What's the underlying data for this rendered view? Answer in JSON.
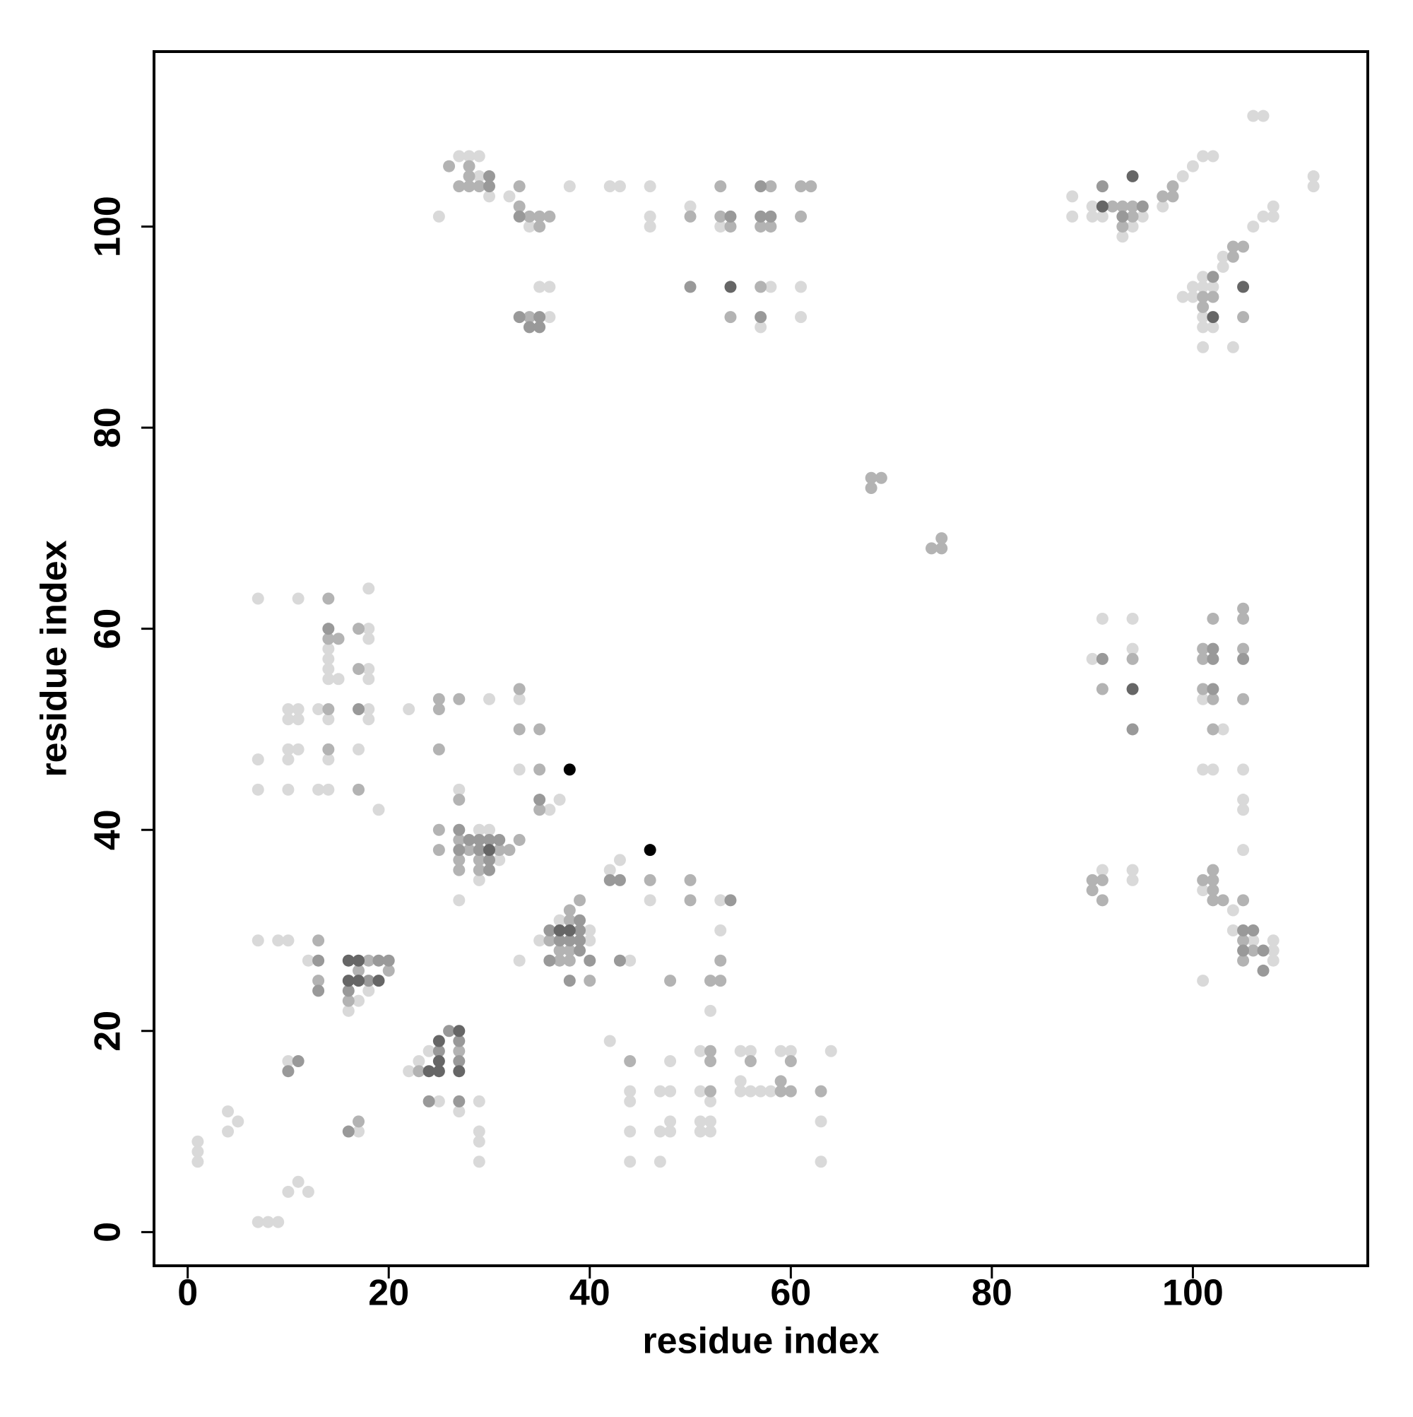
{
  "chart_data": {
    "type": "scatter",
    "x_label": "residue index",
    "y_label": "residue index",
    "xlim": [
      -3.35,
      117.4
    ],
    "ylim": [
      -3.35,
      117.4
    ],
    "xticks": [
      0,
      20,
      40,
      60,
      80,
      100
    ],
    "yticks": [
      0,
      20,
      40,
      60,
      80,
      100
    ],
    "series": [
      {
        "color": "#d9d9d9",
        "x": [
          1,
          1,
          1,
          4,
          4,
          5,
          7,
          8,
          9,
          10,
          11,
          12,
          7,
          9,
          10,
          12,
          10,
          17,
          17,
          16,
          18,
          22,
          23,
          24,
          25,
          27,
          29,
          29,
          29,
          29,
          37,
          40,
          40,
          35,
          33,
          44,
          42,
          42,
          43,
          46,
          53,
          53,
          52,
          44,
          44,
          44,
          44,
          47,
          48,
          48,
          48,
          48,
          47,
          47,
          51,
          51,
          52,
          51,
          52,
          51,
          52,
          55,
          56,
          55,
          55,
          56,
          57,
          58,
          59,
          60,
          63,
          63,
          64,
          29,
          30,
          31,
          29,
          27,
          27,
          30,
          22,
          33,
          33,
          36,
          37,
          7,
          11,
          18,
          18,
          18,
          14,
          14,
          14,
          14,
          15,
          18,
          18,
          10,
          11,
          13,
          18,
          10,
          11,
          14,
          18,
          10,
          11,
          17,
          10,
          14,
          7,
          7,
          10,
          13,
          14,
          19,
          27,
          28,
          29,
          29,
          30,
          25,
          32,
          34,
          38,
          42,
          43,
          46,
          46,
          46,
          50,
          53,
          35,
          36,
          36,
          58,
          61,
          57,
          61,
          88,
          88,
          90,
          91,
          90,
          93,
          94,
          95,
          97,
          99,
          100,
          101,
          102,
          112,
          112,
          106,
          107,
          107,
          108,
          108,
          106,
          103,
          103,
          100,
          100,
          101,
          101,
          102,
          101,
          101,
          102,
          101,
          104,
          99,
          90,
          91,
          94,
          94,
          101,
          103,
          101,
          102,
          105,
          105,
          105,
          105,
          91,
          94,
          94,
          101,
          104,
          104,
          106,
          108,
          108,
          108,
          101
        ],
        "y": [
          9,
          8,
          7,
          12,
          10,
          11,
          1,
          1,
          1,
          4,
          5,
          4,
          29,
          29,
          29,
          27,
          17,
          10,
          23,
          22,
          24,
          16,
          17,
          18,
          13,
          12,
          13,
          10,
          9,
          7,
          31,
          30,
          29,
          29,
          27,
          27,
          19,
          36,
          37,
          33,
          33,
          30,
          22,
          14,
          13,
          10,
          7,
          14,
          14,
          17,
          11,
          10,
          10,
          7,
          18,
          14,
          13,
          11,
          11,
          10,
          10,
          18,
          18,
          15,
          14,
          14,
          14,
          14,
          18,
          18,
          11,
          7,
          18,
          40,
          40,
          37,
          35,
          33,
          44,
          53,
          52,
          53,
          46,
          42,
          43,
          63,
          63,
          64,
          60,
          59,
          58,
          57,
          56,
          55,
          55,
          56,
          55,
          52,
          52,
          52,
          52,
          51,
          51,
          51,
          51,
          48,
          48,
          48,
          47,
          47,
          47,
          44,
          44,
          44,
          44,
          42,
          107,
          107,
          107,
          105,
          103,
          101,
          103,
          100,
          104,
          104,
          104,
          104,
          101,
          100,
          102,
          100,
          94,
          94,
          91,
          94,
          94,
          90,
          91,
          103,
          101,
          101,
          101,
          102,
          99,
          100,
          101,
          102,
          105,
          106,
          107,
          107,
          105,
          104,
          111,
          111,
          101,
          101,
          102,
          100,
          97,
          96,
          93,
          94,
          95,
          94,
          94,
          91,
          90,
          90,
          88,
          88,
          93,
          57,
          61,
          61,
          58,
          53,
          50,
          46,
          46,
          46,
          43,
          42,
          38,
          36,
          36,
          35,
          34,
          32,
          30,
          29,
          29,
          28,
          27,
          25
        ]
      },
      {
        "color": "#b3b3b3",
        "x": [
          13,
          13,
          17,
          18,
          20,
          17,
          16,
          23,
          27,
          38,
          38,
          36,
          37,
          38,
          38,
          40,
          39,
          37,
          46,
          48,
          50,
          50,
          53,
          52,
          53,
          44,
          52,
          52,
          52,
          56,
          60,
          59,
          59,
          60,
          63,
          25,
          25,
          27,
          27,
          27,
          28,
          29,
          29,
          31,
          32,
          33,
          27,
          25,
          25,
          27,
          25,
          33,
          33,
          35,
          35,
          35,
          14,
          14,
          15,
          17,
          17,
          14,
          14,
          17,
          68,
          69,
          68,
          74,
          75,
          75,
          26,
          28,
          28,
          27,
          28,
          29,
          33,
          33,
          34,
          35,
          36,
          35,
          50,
          53,
          53,
          54,
          58,
          57,
          58,
          61,
          62,
          61,
          34,
          57,
          54,
          92,
          93,
          93,
          94,
          94,
          97,
          98,
          98,
          104,
          105,
          104,
          101,
          102,
          105,
          101,
          94,
          91,
          101,
          101,
          102,
          105,
          105,
          105,
          101,
          102,
          105,
          102,
          90,
          91,
          90,
          91,
          101,
          102,
          102,
          102,
          102,
          103,
          105,
          105,
          106,
          105
        ],
        "y": [
          29,
          25,
          11,
          27,
          26,
          26,
          23,
          16,
          18,
          32,
          31,
          29,
          27,
          27,
          28,
          25,
          33,
          28,
          35,
          25,
          35,
          33,
          27,
          25,
          25,
          17,
          18,
          17,
          14,
          17,
          17,
          15,
          14,
          14,
          14,
          40,
          38,
          39,
          37,
          36,
          38,
          37,
          36,
          38,
          38,
          39,
          43,
          53,
          52,
          53,
          48,
          54,
          50,
          50,
          46,
          42,
          63,
          59,
          59,
          60,
          56,
          52,
          48,
          44,
          75,
          75,
          74,
          68,
          69,
          68,
          106,
          106,
          105,
          104,
          104,
          104,
          104,
          102,
          101,
          101,
          101,
          100,
          101,
          104,
          101,
          100,
          104,
          100,
          100,
          104,
          104,
          101,
          91,
          94,
          91,
          102,
          102,
          100,
          101,
          102,
          103,
          103,
          104,
          98,
          98,
          97,
          93,
          93,
          91,
          92,
          57,
          54,
          58,
          57,
          61,
          62,
          61,
          58,
          54,
          53,
          53,
          50,
          35,
          35,
          34,
          33,
          35,
          35,
          36,
          34,
          33,
          33,
          33,
          29,
          28,
          27
        ]
      },
      {
        "color": "#999999",
        "x": [
          13,
          13,
          11,
          10,
          16,
          19,
          20,
          18,
          16,
          25,
          26,
          27,
          27,
          24,
          27,
          36,
          39,
          37,
          38,
          39,
          36,
          39,
          40,
          39,
          38,
          43,
          42,
          43,
          54,
          27,
          27,
          28,
          29,
          29,
          30,
          30,
          30,
          31,
          35,
          14,
          17,
          30,
          30,
          33,
          54,
          57,
          57,
          58,
          33,
          35,
          34,
          35,
          50,
          57,
          91,
          93,
          95,
          102,
          91,
          94,
          102,
          102,
          105,
          102,
          105,
          106,
          105,
          107,
          107
        ],
        "y": [
          27,
          24,
          17,
          16,
          10,
          27,
          27,
          25,
          24,
          18,
          20,
          19,
          17,
          13,
          13,
          30,
          31,
          29,
          29,
          29,
          27,
          28,
          27,
          30,
          25,
          27,
          35,
          35,
          33,
          40,
          38,
          39,
          39,
          38,
          39,
          37,
          36,
          39,
          43,
          60,
          52,
          105,
          104,
          101,
          101,
          104,
          101,
          101,
          91,
          91,
          90,
          90,
          94,
          91,
          104,
          101,
          102,
          95,
          57,
          50,
          58,
          57,
          57,
          54,
          30,
          30,
          28,
          28,
          26
        ]
      },
      {
        "color": "#666666",
        "x": [
          16,
          17,
          16,
          17,
          19,
          24,
          25,
          25,
          25,
          27,
          27,
          37,
          38,
          30,
          54,
          91,
          94,
          102,
          105,
          94
        ],
        "y": [
          27,
          27,
          25,
          25,
          25,
          16,
          19,
          17,
          16,
          20,
          16,
          30,
          30,
          38,
          94,
          102,
          105,
          91,
          94,
          54
        ]
      },
      {
        "color": "#000000",
        "x": [
          38,
          46
        ],
        "y": [
          46,
          38
        ]
      }
    ]
  }
}
